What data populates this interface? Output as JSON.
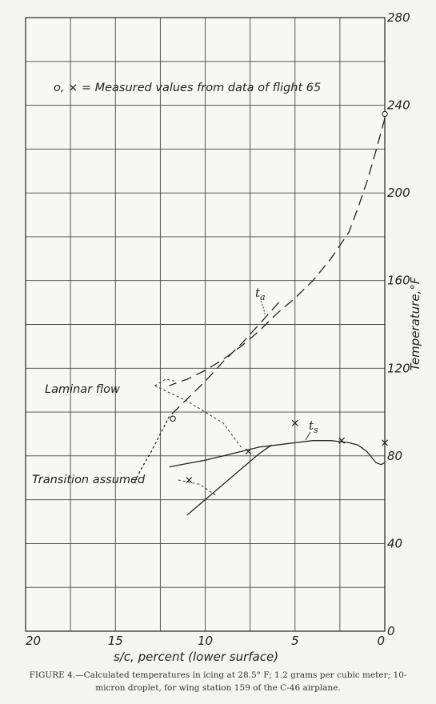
{
  "caption": "FIGURE 4.—Calculated temperatures in icing at 28.5° F; 1.2 grams per cubic meter; 10-micron droplet, for wing station 159 of the C-46 airplane.",
  "legend_text": "o, × = Measured values from data of flight 65",
  "annotations": {
    "laminar": "Laminar flow",
    "transition": "Transition assumed",
    "ta_main": "t",
    "ta_sub": "a",
    "ts_main": "t",
    "ts_sub": "s"
  },
  "chart_data": {
    "type": "line",
    "title": "",
    "xlabel": "s/c, percent (lower surface)",
    "ylabel": "Temperature,°F",
    "x_reversed": true,
    "xlim": [
      0,
      20
    ],
    "ylim": [
      0,
      280
    ],
    "x_ticks": [
      20,
      15,
      10,
      5,
      0
    ],
    "x_tick_labels": [
      "20",
      "15",
      "10",
      "5",
      "0"
    ],
    "y_ticks": [
      0,
      40,
      80,
      120,
      160,
      200,
      240,
      280
    ],
    "y_tick_labels": [
      "0",
      "40",
      "80",
      "120",
      "160",
      "200",
      "240",
      "280"
    ],
    "grid": true,
    "series": [
      {
        "name": "t_a",
        "style": "long-dash",
        "segments": [
          [
            [
              0,
              234
            ],
            [
              0.5,
              219
            ],
            [
              1,
              205
            ],
            [
              1.5,
              193
            ],
            [
              2,
              182
            ],
            [
              3,
              170
            ],
            [
              4,
              160
            ],
            [
              5,
              152
            ],
            [
              6,
              145
            ],
            [
              7,
              137
            ],
            [
              8,
              130
            ],
            [
              9,
              124
            ],
            [
              10,
              119
            ],
            [
              11,
              115
            ],
            [
              11.7,
              113
            ],
            [
              12,
              112
            ]
          ],
          [
            [
              5.9,
              150
            ],
            [
              7,
              140
            ],
            [
              8,
              131
            ],
            [
              9,
              123
            ],
            [
              10,
              114
            ],
            [
              11,
              106
            ],
            [
              12,
              98
            ]
          ]
        ]
      },
      {
        "name": "t_s",
        "style": "solid",
        "segments": [
          [
            [
              0,
              77
            ],
            [
              0.2,
              76
            ],
            [
              0.5,
              77
            ],
            [
              1,
              82
            ],
            [
              1.5,
              85
            ],
            [
              2,
              86
            ],
            [
              3,
              87
            ],
            [
              4,
              87
            ],
            [
              5,
              86
            ],
            [
              6,
              85
            ],
            [
              7,
              84
            ],
            [
              8,
              82
            ],
            [
              9,
              80
            ],
            [
              10,
              78
            ],
            [
              11,
              76.5
            ],
            [
              12,
              75
            ]
          ],
          [
            [
              6.3,
              85
            ],
            [
              7,
              81
            ],
            [
              8,
              74
            ],
            [
              9,
              67
            ],
            [
              10,
              60
            ],
            [
              11,
              53
            ]
          ]
        ]
      },
      {
        "name": "laminar_boundary_short_dash",
        "style": "short-dash",
        "segments": [
          [
            [
              12,
              98
            ],
            [
              12.5,
              90
            ],
            [
              13,
              82
            ],
            [
              13.5,
              75
            ],
            [
              14,
              67
            ]
          ]
        ]
      }
    ],
    "measured_circles": [
      [
        0,
        236
      ],
      [
        11.8,
        97
      ]
    ],
    "measured_crosses": [
      [
        5,
        95
      ],
      [
        2.4,
        87
      ],
      [
        0,
        86
      ],
      [
        7.6,
        82
      ],
      [
        10.9,
        69
      ]
    ],
    "leaders": [
      {
        "label": "laminar",
        "points": [
          [
            12.8,
            112
          ],
          [
            12.2,
            115
          ],
          [
            11.6,
            114
          ]
        ]
      },
      {
        "label": "laminar",
        "points": [
          [
            12.8,
            112
          ],
          [
            11,
            105
          ],
          [
            9,
            95
          ],
          [
            8,
            84
          ]
        ]
      },
      {
        "label": "transition",
        "points": [
          [
            11.5,
            69
          ],
          [
            10.3,
            67
          ],
          [
            9.4,
            62
          ]
        ]
      }
    ]
  }
}
